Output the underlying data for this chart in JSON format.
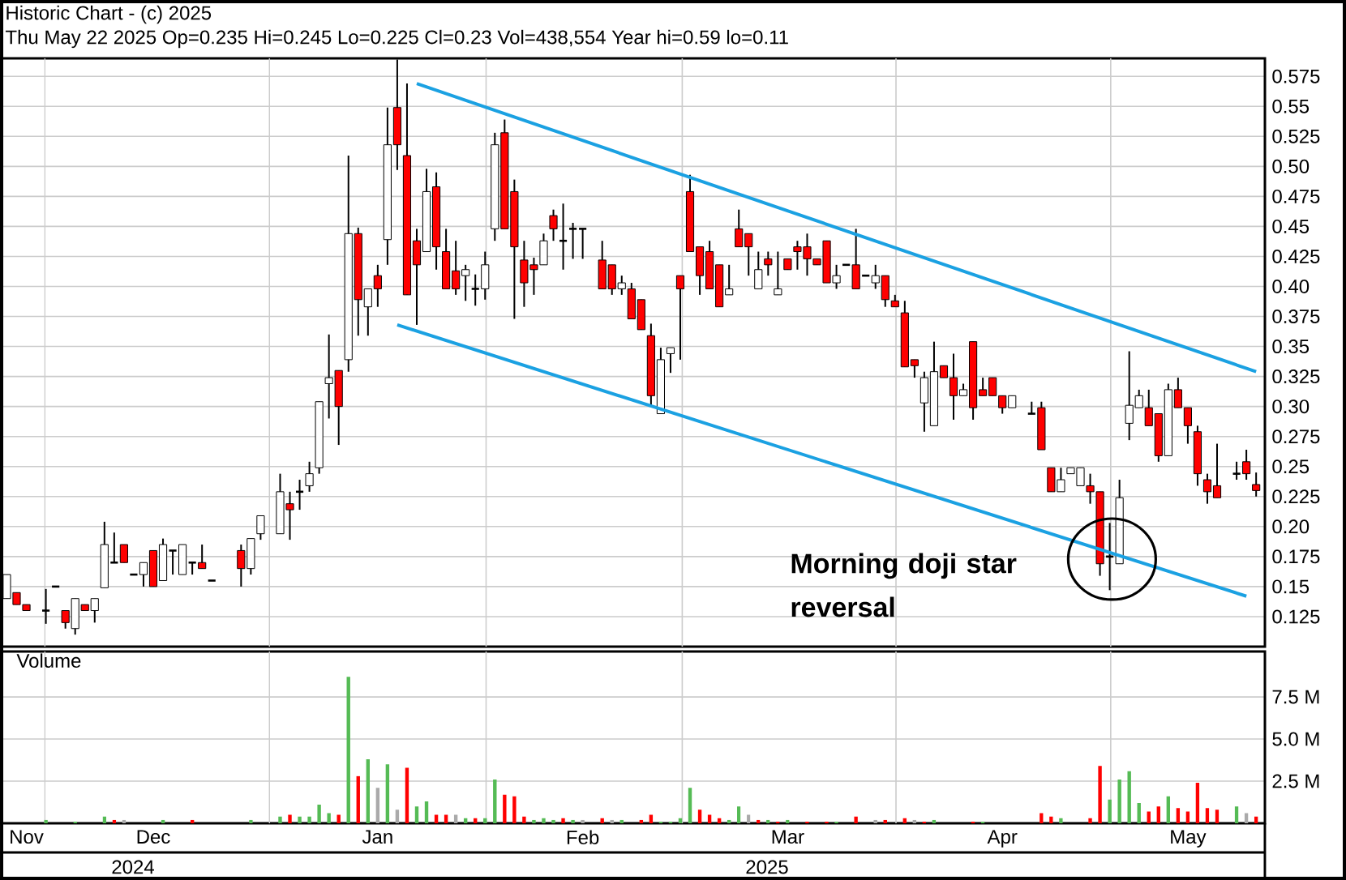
{
  "chart_data": [
    {
      "type": "candlestick",
      "title": "Historic Chart - (c) 2025",
      "subtitle": "Thu May 22 2025  Op=0.235  Hi=0.245  Lo=0.225  Cl=0.23  Vol=438,554  Year hi=0.59  lo=0.11",
      "categories": [
        null,
        null,
        null,
        null,
        null,
        null,
        null,
        null,
        null,
        null,
        null,
        null,
        null,
        null,
        null,
        null,
        null,
        null,
        null,
        null,
        null,
        null,
        null,
        null,
        null,
        null,
        null,
        null,
        null,
        null,
        null,
        null,
        null,
        null,
        null,
        null,
        null,
        null,
        null,
        null,
        null,
        null,
        null,
        null,
        null,
        null,
        null,
        null,
        null,
        null,
        null,
        null,
        null,
        null,
        null,
        null,
        null,
        null,
        null,
        null,
        null,
        null,
        null,
        null,
        null,
        null,
        null,
        null,
        null,
        null,
        null,
        null,
        null,
        null,
        null,
        null,
        null,
        null,
        null,
        null,
        null,
        null,
        null,
        null,
        null,
        null,
        null,
        null,
        null,
        null,
        null,
        null,
        null,
        null,
        null,
        null,
        null,
        null,
        null,
        null,
        null,
        null,
        null,
        null,
        null,
        null,
        null,
        null,
        null,
        null,
        null,
        null,
        null,
        null,
        null,
        null,
        null,
        null,
        null,
        null,
        null,
        null,
        null,
        null,
        null,
        null,
        null,
        null,
        null
      ],
      "ohlc": [
        [
          0.14,
          0.16,
          0.14,
          0.16
        ],
        [
          0.145,
          0.145,
          0.135,
          0.135
        ],
        [
          0.135,
          0.135,
          0.13,
          0.13
        ],
        null,
        [
          0.13,
          0.148,
          0.119,
          0.13
        ],
        [
          0.15,
          0.15,
          0.15,
          0.15
        ],
        [
          0.13,
          0.13,
          0.115,
          0.12
        ],
        [
          0.115,
          0.14,
          0.11,
          0.14
        ],
        [
          0.135,
          0.135,
          0.13,
          0.13
        ],
        [
          0.13,
          0.14,
          0.12,
          0.14
        ],
        [
          0.149,
          0.204,
          0.149,
          0.185
        ],
        [
          0.17,
          0.195,
          0.17,
          0.17
        ],
        [
          0.185,
          0.185,
          0.17,
          0.17
        ],
        [
          0.16,
          0.16,
          0.16,
          0.16
        ],
        [
          0.16,
          0.17,
          0.15,
          0.17
        ],
        [
          0.18,
          0.18,
          0.15,
          0.15
        ],
        [
          0.155,
          0.19,
          0.155,
          0.185
        ],
        [
          0.18,
          0.18,
          0.16,
          0.18
        ],
        [
          0.16,
          0.185,
          0.16,
          0.185
        ],
        [
          0.17,
          0.17,
          0.16,
          0.17
        ],
        [
          0.17,
          0.185,
          0.165,
          0.165
        ],
        [
          0.155,
          0.155,
          0.155,
          0.155
        ],
        null,
        null,
        [
          0.18,
          0.185,
          0.15,
          0.165
        ],
        [
          0.165,
          0.19,
          0.16,
          0.19
        ],
        [
          0.194,
          0.209,
          0.189,
          0.209
        ],
        null,
        [
          0.194,
          0.244,
          0.194,
          0.229
        ],
        [
          0.219,
          0.229,
          0.189,
          0.214
        ],
        [
          0.229,
          0.239,
          0.214,
          0.229
        ],
        [
          0.234,
          0.254,
          0.229,
          0.244
        ],
        [
          0.249,
          0.304,
          0.244,
          0.304
        ],
        [
          0.319,
          0.36,
          0.29,
          0.324
        ],
        [
          0.33,
          0.33,
          0.268,
          0.3
        ],
        [
          0.339,
          0.509,
          0.329,
          0.444
        ],
        [
          0.444,
          0.449,
          0.359,
          0.389
        ],
        [
          0.383,
          0.398,
          0.359,
          0.398
        ],
        [
          0.409,
          0.418,
          0.383,
          0.398
        ],
        [
          0.439,
          0.549,
          0.418,
          0.518
        ],
        [
          0.549,
          0.589,
          0.497,
          0.518
        ],
        [
          0.509,
          0.569,
          0.393,
          0.393
        ],
        [
          0.438,
          0.448,
          0.368,
          0.418
        ],
        [
          0.429,
          0.498,
          0.429,
          0.479
        ],
        [
          0.483,
          0.495,
          0.414,
          0.433
        ],
        [
          0.429,
          0.448,
          0.398,
          0.398
        ],
        [
          0.413,
          0.438,
          0.393,
          0.398
        ],
        [
          0.409,
          0.418,
          0.388,
          0.414
        ],
        [
          0.398,
          0.41,
          0.384,
          0.398
        ],
        [
          0.398,
          0.429,
          0.389,
          0.418
        ],
        [
          0.448,
          0.528,
          0.438,
          0.518
        ],
        [
          0.528,
          0.539,
          0.448,
          0.448
        ],
        [
          0.479,
          0.489,
          0.373,
          0.433
        ],
        [
          0.422,
          0.438,
          0.383,
          0.403
        ],
        [
          0.418,
          0.424,
          0.393,
          0.414
        ],
        [
          0.418,
          0.444,
          0.418,
          0.438
        ],
        [
          0.459,
          0.464,
          0.438,
          0.448
        ],
        [
          0.438,
          0.469,
          0.414,
          0.438
        ],
        [
          0.448,
          0.453,
          0.423,
          0.448
        ],
        [
          0.448,
          0.448,
          0.423,
          0.448
        ],
        null,
        [
          0.422,
          0.438,
          0.398,
          0.398
        ],
        [
          0.418,
          0.418,
          0.393,
          0.398
        ],
        [
          0.398,
          0.409,
          0.393,
          0.403
        ],
        [
          0.398,
          0.403,
          0.373,
          0.373
        ],
        [
          0.389,
          0.389,
          0.364,
          0.364
        ],
        [
          0.359,
          0.369,
          0.301,
          0.309
        ],
        [
          0.294,
          0.349,
          0.294,
          0.339
        ],
        [
          0.344,
          0.349,
          0.328,
          0.349
        ],
        [
          0.409,
          0.409,
          0.339,
          0.398
        ],
        [
          0.479,
          0.493,
          0.429,
          0.429
        ],
        [
          0.433,
          0.433,
          0.393,
          0.409
        ],
        [
          0.429,
          0.438,
          0.398,
          0.398
        ],
        [
          0.418,
          0.418,
          0.383,
          0.383
        ],
        [
          0.393,
          0.418,
          0.393,
          0.398
        ],
        [
          0.448,
          0.464,
          0.433,
          0.433
        ],
        [
          0.444,
          0.444,
          0.409,
          0.433
        ],
        [
          0.398,
          0.429,
          0.398,
          0.414
        ],
        [
          0.423,
          0.429,
          0.409,
          0.418
        ],
        [
          0.393,
          0.429,
          0.393,
          0.398
        ],
        [
          0.423,
          0.423,
          0.414,
          0.414
        ],
        [
          0.433,
          0.438,
          0.414,
          0.429
        ],
        [
          0.433,
          0.444,
          0.409,
          0.423
        ],
        [
          0.423,
          0.423,
          0.418,
          0.418
        ],
        [
          0.438,
          0.438,
          0.403,
          0.403
        ],
        [
          0.403,
          0.418,
          0.398,
          0.409
        ],
        [
          0.418,
          0.418,
          0.418,
          0.418
        ],
        [
          0.418,
          0.448,
          0.398,
          0.398
        ],
        [
          0.409,
          0.409,
          0.409,
          0.409
        ],
        [
          0.403,
          0.418,
          0.398,
          0.409
        ],
        [
          0.409,
          0.409,
          0.383,
          0.389
        ],
        [
          0.388,
          0.393,
          0.383,
          0.383
        ],
        [
          0.378,
          0.388,
          0.333,
          0.333
        ],
        [
          0.339,
          0.339,
          0.324,
          0.334
        ],
        [
          0.303,
          0.329,
          0.279,
          0.324
        ],
        [
          0.284,
          0.354,
          0.284,
          0.329
        ],
        [
          0.334,
          0.334,
          0.324,
          0.324
        ],
        [
          0.324,
          0.344,
          0.289,
          0.309
        ],
        [
          0.309,
          0.319,
          0.309,
          0.314
        ],
        [
          0.354,
          0.354,
          0.289,
          0.299
        ],
        [
          0.314,
          0.324,
          0.309,
          0.309
        ],
        [
          0.324,
          0.324,
          0.309,
          0.309
        ],
        [
          0.309,
          0.309,
          0.294,
          0.299
        ],
        [
          0.299,
          0.309,
          0.299,
          0.309
        ],
        null,
        [
          0.294,
          0.304,
          0.294,
          0.294
        ],
        [
          0.299,
          0.304,
          0.264,
          0.264
        ],
        [
          0.249,
          0.249,
          0.229,
          0.229
        ],
        [
          0.229,
          0.249,
          0.229,
          0.239
        ],
        [
          0.244,
          0.249,
          0.244,
          0.249
        ],
        [
          0.234,
          0.249,
          0.234,
          0.249
        ],
        [
          0.234,
          0.244,
          0.219,
          0.229
        ],
        [
          0.229,
          0.229,
          0.159,
          0.169
        ],
        [
          0.175,
          0.203,
          0.147,
          0.175
        ],
        [
          0.169,
          0.239,
          0.169,
          0.224
        ],
        [
          0.286,
          0.346,
          0.272,
          0.301
        ],
        [
          0.299,
          0.314,
          0.299,
          0.309
        ],
        [
          0.299,
          0.314,
          0.284,
          0.284
        ],
        [
          0.294,
          0.294,
          0.254,
          0.259
        ],
        [
          0.259,
          0.319,
          0.259,
          0.314
        ],
        [
          0.314,
          0.324,
          0.299,
          0.299
        ],
        [
          0.299,
          0.299,
          0.269,
          0.284
        ],
        [
          0.279,
          0.284,
          0.234,
          0.244
        ],
        [
          0.239,
          0.244,
          0.219,
          0.229
        ],
        [
          0.234,
          0.269,
          0.224,
          0.224
        ],
        null,
        [
          0.244,
          0.254,
          0.239,
          0.244
        ],
        [
          0.254,
          0.264,
          0.239,
          0.244
        ],
        [
          0.235,
          0.245,
          0.225,
          0.23
        ]
      ],
      "series": [
        {
          "type": "line",
          "color": "#1ba1e2",
          "values": [
            null,
            null,
            null,
            null,
            null,
            null,
            null,
            null,
            null,
            null,
            null,
            null,
            null,
            null,
            null,
            null,
            null,
            null,
            null,
            null,
            null,
            null,
            null,
            null,
            null,
            null,
            null,
            null,
            null,
            null,
            null,
            null,
            null,
            null,
            null,
            null,
            null,
            null,
            null,
            null,
            null,
            null,
            0.569,
            null,
            null,
            null,
            null,
            null,
            null,
            null,
            null,
            null,
            null,
            null,
            null,
            null,
            null,
            null,
            null,
            null,
            null,
            null,
            null,
            null,
            null,
            null,
            null,
            null,
            null,
            null,
            null,
            null,
            null,
            null,
            null,
            null,
            null,
            null,
            null,
            null,
            null,
            null,
            null,
            null,
            null,
            null,
            null,
            null,
            null,
            null,
            null,
            null,
            null,
            null,
            null,
            null,
            null,
            null,
            null,
            null,
            null,
            null,
            null,
            null,
            null,
            null,
            null,
            null,
            null,
            null,
            null,
            null,
            null,
            null,
            null,
            null,
            null,
            null,
            null,
            null,
            null,
            null,
            null,
            null,
            null,
            null,
            null,
            null,
            0.329
          ]
        },
        {
          "type": "line",
          "color": "#1ba1e2",
          "values": [
            null,
            null,
            null,
            null,
            null,
            null,
            null,
            null,
            null,
            null,
            null,
            null,
            null,
            null,
            null,
            null,
            null,
            null,
            null,
            null,
            null,
            null,
            null,
            null,
            null,
            null,
            null,
            null,
            null,
            null,
            null,
            null,
            null,
            null,
            null,
            null,
            null,
            null,
            null,
            null,
            0.368,
            null,
            null,
            null,
            null,
            null,
            null,
            null,
            null,
            null,
            null,
            null,
            null,
            null,
            null,
            null,
            null,
            null,
            null,
            null,
            null,
            null,
            null,
            null,
            null,
            null,
            null,
            null,
            null,
            null,
            null,
            null,
            null,
            null,
            null,
            null,
            null,
            null,
            null,
            null,
            null,
            null,
            null,
            null,
            null,
            null,
            null,
            null,
            null,
            null,
            null,
            null,
            null,
            null,
            null,
            null,
            null,
            null,
            null,
            null,
            null,
            null,
            null,
            null,
            null,
            null,
            null,
            null,
            null,
            null,
            null,
            null,
            null,
            null,
            null,
            null,
            null,
            null,
            null,
            null,
            null,
            null,
            null,
            null,
            null,
            null,
            null,
            0.142,
            null
          ]
        }
      ],
      "ylim": [
        0.1,
        0.59
      ],
      "yticks": [
        0.575,
        0.55,
        0.525,
        {
          "value": 0.5,
          "label": "0.50"
        },
        0.475,
        0.45,
        0.425,
        {
          "value": 0.4,
          "label": "0.40"
        },
        0.375,
        0.35,
        0.325,
        {
          "value": 0.3,
          "label": "0.30"
        },
        0.275,
        0.25,
        0.225,
        {
          "value": 0.2,
          "label": "0.20"
        },
        0.175,
        0.15,
        0.125
      ],
      "grid": "y",
      "tick_labels": "y",
      "annotations": [
        "Morning doji star reversal"
      ]
    },
    {
      "type": "bar",
      "title": "Volume",
      "categories": [
        null,
        null,
        "Nov",
        null,
        null,
        null,
        null,
        null,
        null,
        null,
        null,
        null,
        null,
        null,
        null,
        "Dec",
        null,
        null,
        null,
        null,
        null,
        null,
        null,
        null,
        null,
        null,
        null,
        null,
        null,
        null,
        null,
        null,
        null,
        null,
        null,
        null,
        null,
        null,
        "Jan",
        null,
        null,
        null,
        null,
        null,
        null,
        null,
        null,
        null,
        null,
        null,
        null,
        null,
        null,
        null,
        null,
        null,
        null,
        null,
        null,
        "Feb",
        null,
        null,
        null,
        null,
        null,
        null,
        null,
        null,
        null,
        null,
        null,
        null,
        null,
        null,
        null,
        null,
        null,
        null,
        null,
        null,
        "Mar",
        null,
        null,
        null,
        null,
        null,
        null,
        null,
        null,
        null,
        null,
        null,
        null,
        null,
        null,
        null,
        null,
        null,
        null,
        null,
        null,
        null,
        "Apr",
        null,
        null,
        null,
        null,
        null,
        null,
        null,
        null,
        null,
        null,
        null,
        null,
        null,
        null,
        null,
        null,
        null,
        null,
        "May",
        null,
        null,
        null,
        null,
        null,
        null,
        null
      ],
      "values": [
        null,
        null,
        null,
        null,
        0.2,
        null,
        null,
        0.1,
        null,
        null,
        0.4,
        0.2,
        0.2,
        null,
        null,
        null,
        0.2,
        null,
        null,
        0.2,
        null,
        null,
        null,
        null,
        null,
        0.2,
        null,
        null,
        0.4,
        0.5,
        0.4,
        0.4,
        1.1,
        0.6,
        0.5,
        8.7,
        2.8,
        3.8,
        2.1,
        3.5,
        0.8,
        3.3,
        1.0,
        1.3,
        0.5,
        0.5,
        0.5,
        0.3,
        0.3,
        0.3,
        2.6,
        1.7,
        1.6,
        0.4,
        0.2,
        0.3,
        0.2,
        0.3,
        0.2,
        0.2,
        null,
        0.3,
        0.2,
        0.2,
        null,
        0.2,
        0.5,
        0.1,
        0.1,
        0.3,
        2.1,
        0.8,
        0.5,
        0.3,
        0.2,
        1.0,
        0.5,
        0.2,
        0.2,
        0.1,
        0.2,
        null,
        0.1,
        null,
        0.1,
        0.1,
        null,
        0.4,
        null,
        0.2,
        0.2,
        null,
        0.3,
        0.2,
        0.1,
        0.2,
        null,
        null,
        null,
        0.1,
        0.1,
        null,
        null,
        null,
        null,
        null,
        0.6,
        0.4,
        0.3,
        null,
        null,
        0.3,
        3.4,
        1.4,
        2.6,
        3.1,
        1.2,
        0.7,
        1.0,
        1.6,
        0.9,
        0.7,
        2.4,
        0.9,
        0.8,
        null,
        1.0,
        0.6,
        0.4
      ],
      "colors": [
        null,
        null,
        null,
        null,
        "#55bb55",
        null,
        null,
        "#55bb55",
        null,
        null,
        "#55bb55",
        "#ff0000",
        "#aaaaaa",
        null,
        null,
        null,
        "#55bb55",
        null,
        null,
        "#ff0000",
        null,
        null,
        null,
        null,
        null,
        "#55bb55",
        null,
        null,
        "#55bb55",
        "#ff0000",
        "#55bb55",
        "#55bb55",
        "#55bb55",
        "#55bb55",
        "#ff0000",
        "#55bb55",
        "#ff0000",
        "#55bb55",
        "#aaaaaa",
        "#55bb55",
        "#aaaaaa",
        "#ff0000",
        "#55bb55",
        "#55bb55",
        "#ff0000",
        "#ff0000",
        "#aaaaaa",
        "#55bb55",
        "#ff0000",
        "#55bb55",
        "#55bb55",
        "#ff0000",
        "#ff0000",
        "#ff0000",
        "#55bb55",
        "#55bb55",
        "#55bb55",
        "#ff0000",
        "#55bb55",
        "#aaaaaa",
        null,
        "#ff0000",
        "#aaaaaa",
        "#55bb55",
        null,
        "#ff0000",
        "#ff0000",
        "#55bb55",
        "#55bb55",
        "#55bb55",
        "#55bb55",
        "#ff0000",
        "#ff0000",
        "#ff0000",
        "#55bb55",
        "#55bb55",
        "#aaaaaa",
        "#ff0000",
        "#55bb55",
        "#ff0000",
        "#55bb55",
        null,
        "#ff0000",
        null,
        "#ff0000",
        "#55bb55",
        null,
        "#ff0000",
        null,
        "#aaaaaa",
        "#ff0000",
        null,
        "#ff0000",
        "#aaaaaa",
        "#ff0000",
        "#55bb55",
        null,
        null,
        null,
        "#ff0000",
        "#55bb55",
        null,
        null,
        null,
        null,
        null,
        "#ff0000",
        "#ff0000",
        "#55bb55",
        null,
        null,
        "#ff0000",
        "#ff0000",
        "#55bb55",
        "#55bb55",
        "#55bb55",
        "#55bb55",
        "#ff0000",
        "#ff0000",
        "#55bb55",
        "#ff0000",
        "#ff0000",
        "#ff0000",
        "#ff0000",
        "#ff0000",
        null,
        "#55bb55",
        "#aaaaaa",
        "#ff0000"
      ],
      "ylim": [
        0,
        10.2
      ],
      "yticks": [
        {
          "value": 2.5,
          "label": "2.5 M"
        },
        {
          "value": 5,
          "label": "5.0 M"
        },
        {
          "value": 7.5,
          "label": "7.5 M"
        }
      ],
      "grid": "y",
      "annotations": [
        "2024",
        "2025"
      ]
    }
  ]
}
